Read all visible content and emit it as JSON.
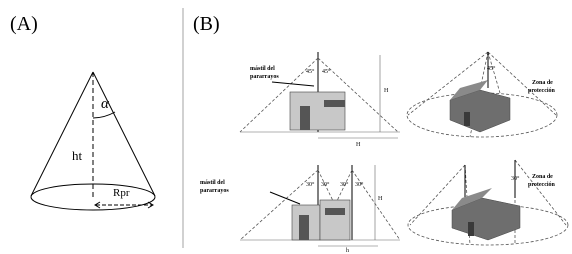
{
  "panel_a": {
    "label": "(A)",
    "angle": "α",
    "height": "ht",
    "radius": "Rpr"
  },
  "panel_b": {
    "label": "(B)",
    "rows": [
      {
        "mast_label": [
          "mástil del",
          "pararrayos"
        ],
        "angles": [
          "45°",
          "45°"
        ],
        "height": "H",
        "base": "H",
        "zone_label": [
          "Zona de",
          "protección"
        ],
        "roof_angle": "45°"
      },
      {
        "mast_label": [
          "mástil del",
          "pararrayos"
        ],
        "angles": [
          "30°",
          "30°",
          "30°",
          "30°"
        ],
        "height": "H",
        "base": "h",
        "zone_label": [
          "Zona de",
          "protección"
        ],
        "roof_angle": "30°"
      }
    ]
  }
}
